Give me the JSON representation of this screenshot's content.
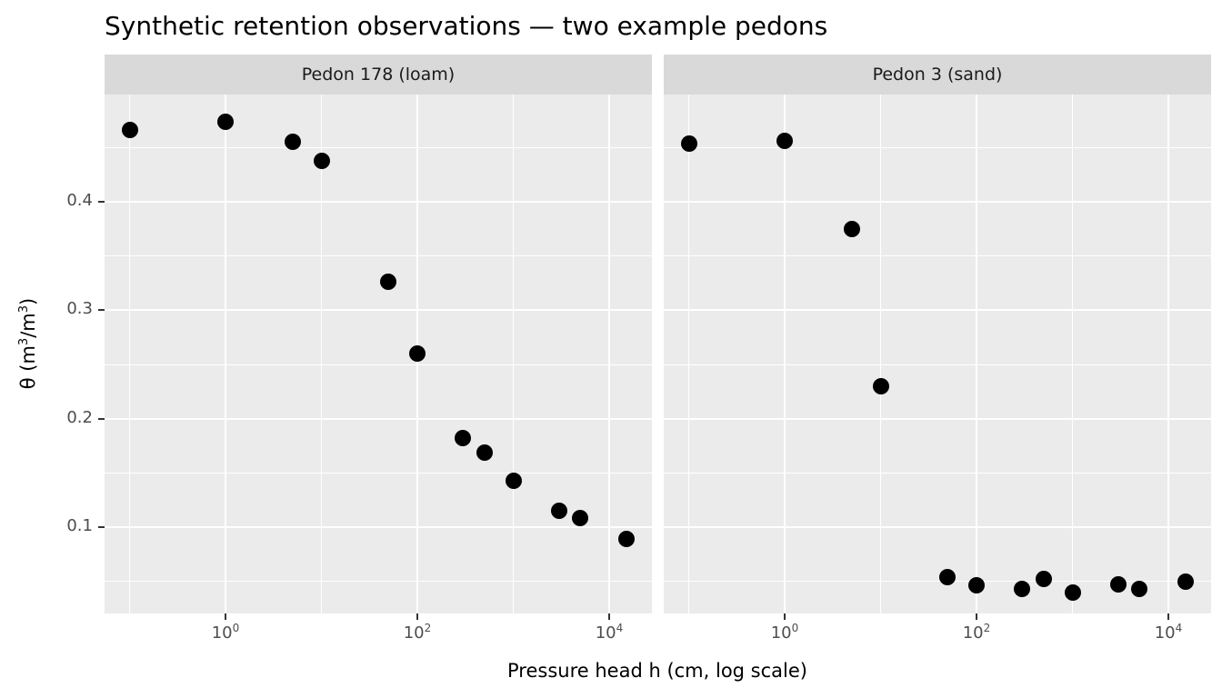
{
  "title": "Synthetic retention observations — two example pedons",
  "facets": [
    {
      "label": "Pedon 178 (loam)"
    },
    {
      "label": "Pedon 3 (sand)"
    }
  ],
  "x_axis": {
    "title": "Pressure head h (cm, log scale)",
    "tick_base": "10",
    "major_tick_exponents": [
      "0",
      "2",
      "4"
    ]
  },
  "y_axis": {
    "title_parts": {
      "p1": "θ (m",
      "sup1": "3",
      "p2": "/m",
      "sup2": "3",
      "p3": ")"
    },
    "tick_labels": [
      "0.4",
      "0.3",
      "0.2",
      "0.1"
    ]
  },
  "colors": {
    "panel_background": "#ebebeb",
    "strip_background": "#d9d9d9",
    "gridline": "#ffffff",
    "point": "#000000",
    "tick_mark": "#333333",
    "tick_label": "#4d4d4d",
    "text": "#000000"
  },
  "chart_data": {
    "type": "scatter",
    "title": "Synthetic retention observations — two example pedons",
    "xlabel": "Pressure head h (cm, log scale)",
    "ylabel": "θ (m³/m³)",
    "x_scale": "log10",
    "grid": true,
    "legend": false,
    "facet_labels": [
      "Pedon 178 (loam)",
      "Pedon 3 (sand)"
    ],
    "x_range_log10": [
      -1.2607,
      4.4455
    ],
    "y_range": [
      0.0204,
      0.4989
    ],
    "x_major_breaks": [
      1,
      100,
      10000
    ],
    "x_minor_breaks": [
      0.1,
      10,
      1000
    ],
    "y_major_breaks": [
      0.4,
      0.3,
      0.2,
      0.1
    ],
    "y_minor_breaks": [
      0.45,
      0.35,
      0.25,
      0.15,
      0.05
    ],
    "series": [
      {
        "name": "Pedon 178 (loam)",
        "x": [
          0.1,
          1,
          5,
          10,
          50,
          100,
          300,
          500,
          1000,
          3000,
          5000,
          15000
        ],
        "y": [
          0.466,
          0.474,
          0.455,
          0.438,
          0.326,
          0.26,
          0.182,
          0.169,
          0.143,
          0.115,
          0.108,
          0.089
        ]
      },
      {
        "name": "Pedon 3 (sand)",
        "x": [
          0.1,
          1,
          5,
          10,
          50,
          100,
          300,
          500,
          1000,
          3000,
          5000,
          15000
        ],
        "y": [
          0.454,
          0.456,
          0.375,
          0.23,
          0.054,
          0.046,
          0.043,
          0.052,
          0.04,
          0.047,
          0.043,
          0.05
        ]
      }
    ]
  }
}
